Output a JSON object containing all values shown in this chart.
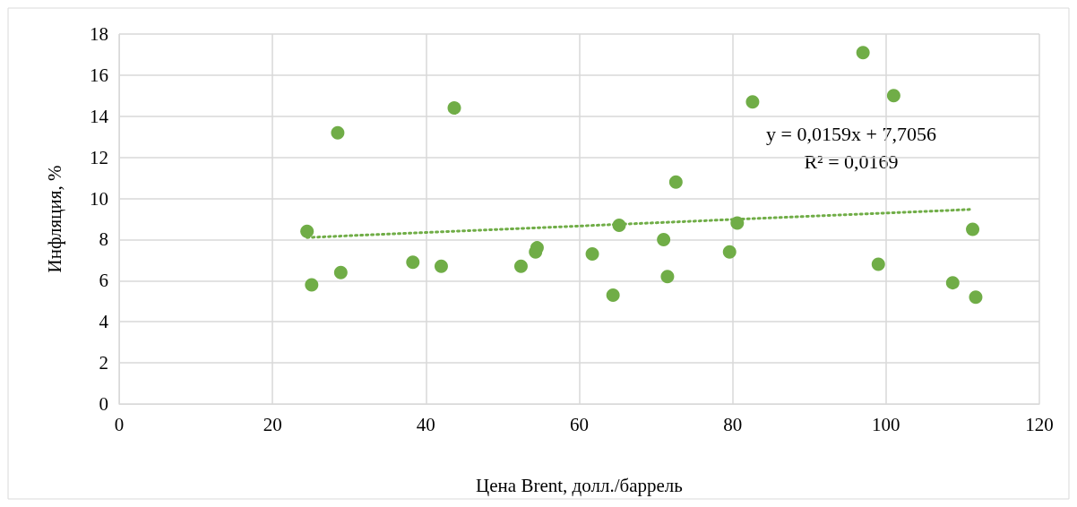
{
  "chart_data": {
    "type": "scatter",
    "xlabel": "Цена Brent, долл./баррель",
    "ylabel": "Инфляция, %",
    "xlim": [
      0,
      120
    ],
    "xticks": [
      0,
      20,
      40,
      60,
      80,
      100,
      120
    ],
    "ylim": [
      0,
      18
    ],
    "yticks": [
      0,
      2,
      4,
      6,
      8,
      10,
      12,
      14,
      16,
      18
    ],
    "grid": true,
    "marker": "circle",
    "annotations": [
      "y = 0,0159x + 7,7056",
      "R² = 0,0169"
    ],
    "series": [
      {
        "color": "#70ad47",
        "x": [
          24.5,
          25.1,
          28.5,
          28.9,
          38.3,
          42.0,
          43.7,
          52.4,
          54.3,
          54.5,
          61.7,
          64.4,
          65.2,
          71.0,
          71.5,
          72.6,
          79.6,
          80.6,
          82.6,
          97.0,
          99.0,
          101.0,
          108.7,
          111.3,
          111.7
        ],
        "values": [
          8.4,
          5.8,
          13.2,
          6.4,
          6.9,
          6.7,
          14.4,
          6.7,
          7.4,
          7.6,
          7.3,
          5.3,
          8.7,
          8.0,
          6.2,
          10.8,
          7.4,
          8.8,
          14.7,
          17.1,
          6.8,
          15.0,
          5.9,
          8.5,
          5.2
        ]
      },
      {
        "type": "line",
        "color": "#70ad47",
        "line_style": "dotted",
        "marker": "none",
        "x": [
          24.5,
          111.3
        ],
        "values": [
          8.1,
          9.47
        ]
      }
    ]
  }
}
